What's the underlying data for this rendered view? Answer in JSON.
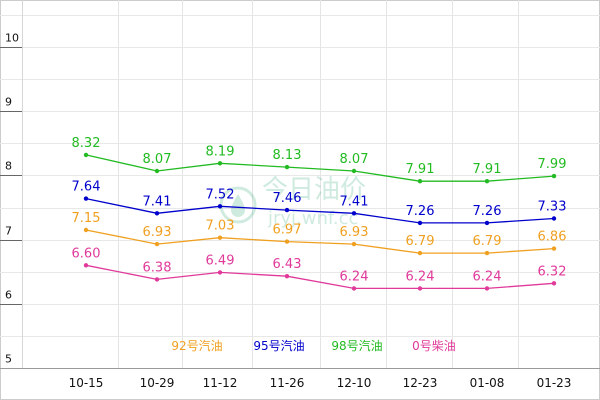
{
  "chart_data": {
    "type": "line",
    "categories": [
      "10-15",
      "10-29",
      "11-12",
      "11-26",
      "12-10",
      "12-23",
      "01-08",
      "01-23"
    ],
    "y_ticks": [
      "5",
      "6",
      "7",
      "8",
      "9",
      "10"
    ],
    "ylim": [
      5,
      10.5
    ],
    "series": [
      {
        "name": "92号汽油",
        "color": "#f0a020",
        "values": [
          7.15,
          6.93,
          7.03,
          6.97,
          6.93,
          6.79,
          6.79,
          6.86
        ]
      },
      {
        "name": "95号汽油",
        "color": "#0000cc",
        "values": [
          7.64,
          7.41,
          7.52,
          7.46,
          7.41,
          7.26,
          7.26,
          7.33
        ]
      },
      {
        "name": "98号汽油",
        "color": "#22bb22",
        "values": [
          8.32,
          8.07,
          8.19,
          8.13,
          8.07,
          7.91,
          7.91,
          7.99
        ]
      },
      {
        "name": "0号柴油",
        "color": "#e0399a",
        "values": [
          6.6,
          6.38,
          6.49,
          6.43,
          6.24,
          6.24,
          6.24,
          6.32
        ]
      }
    ],
    "labels": {
      "92号汽油": [
        "7.15",
        "6.93",
        "7.03",
        "6.97",
        "6.93",
        "6.79",
        "6.79",
        "6.86"
      ],
      "95号汽油": [
        "7.64",
        "7.41",
        "7.52",
        "7.46",
        "7.41",
        "7.26",
        "7.26",
        "7.33"
      ],
      "98号汽油": [
        "8.32",
        "8.07",
        "8.19",
        "8.13",
        "8.07",
        "7.91",
        "7.91",
        "7.99"
      ],
      "0号柴油": [
        "6.60",
        "6.38",
        "6.49",
        "6.43",
        "6.24",
        "6.24",
        "6.24",
        "6.32"
      ]
    },
    "legend": [
      "92号汽油",
      "95号汽油",
      "98号汽油",
      "0号柴油"
    ],
    "grid": true
  },
  "watermark": {
    "text_cn": "今日油价",
    "text_url": "jryj.wnf.cc"
  }
}
